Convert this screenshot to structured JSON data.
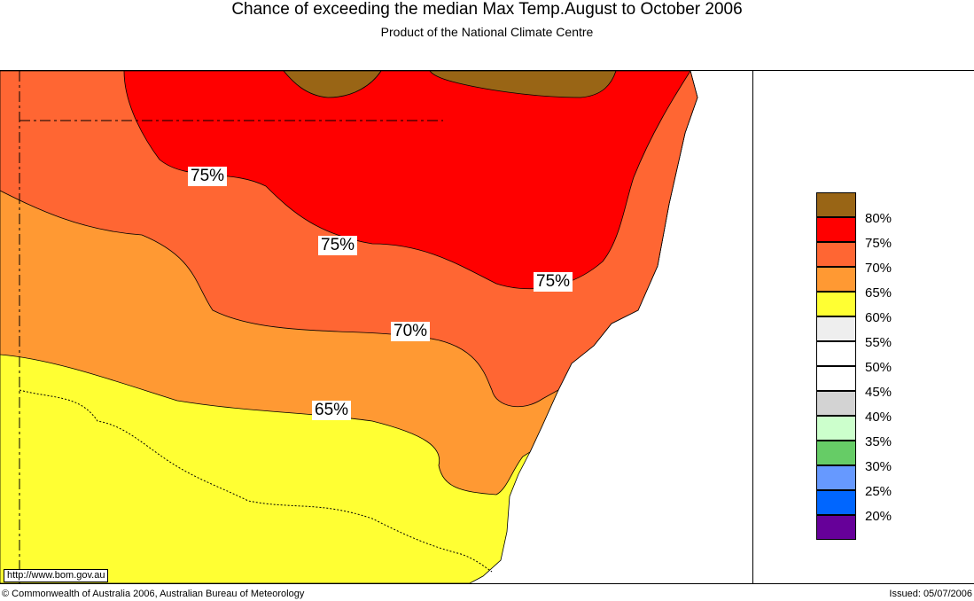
{
  "header": {
    "title": "Chance of exceeding the median Max Temp.August to October 2006",
    "subtitle": "Product of the National Climate Centre"
  },
  "colors": {
    "c80": "#996515",
    "c75": "#ff0000",
    "c70": "#ff6633",
    "c65": "#ff9933",
    "c60": "#ffff33",
    "ocean": "#ffffff",
    "coast": "#000000"
  },
  "map": {
    "contour_labels": [
      "75%",
      "75%",
      "75%",
      "70%",
      "65%"
    ]
  },
  "legend": {
    "colors": [
      "#996515",
      "#ff0000",
      "#ff6633",
      "#ff9933",
      "#ffff33",
      "#eeeeee",
      "#ffffff",
      "#ffffff",
      "#d3d3d3",
      "#ccffcc",
      "#66cc66",
      "#6699ff",
      "#0066ff",
      "#660099"
    ],
    "labels": [
      "80%",
      "75%",
      "70%",
      "65%",
      "60%",
      "55%",
      "50%",
      "45%",
      "40%",
      "35%",
      "30%",
      "25%",
      "20%"
    ]
  },
  "footer": {
    "url": "http://www.bom.gov.au",
    "copyright": "© Commonwealth of Australia 2006, Australian Bureau of Meteorology",
    "issued": "Issued: 05/07/2006"
  }
}
